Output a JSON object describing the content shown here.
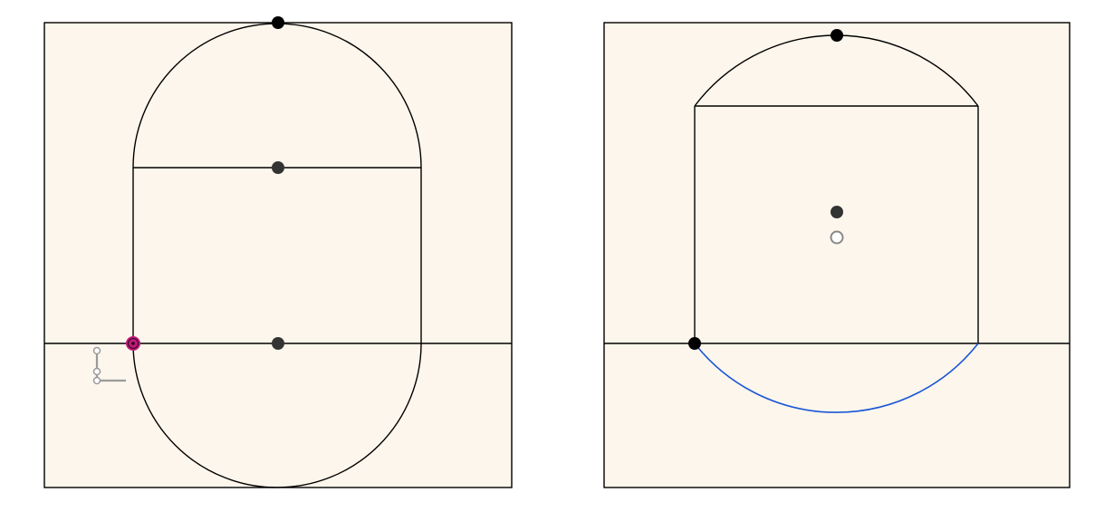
{
  "colors": {
    "sketch_background": "#fdf6ec",
    "line": "#000000",
    "active_arc": "#1a56d6",
    "selected_point": "#c2187a",
    "center_point": "#333333",
    "open_point": "#888888",
    "constraint_glyph": "#9a9a9a"
  },
  "panels": [
    {
      "name": "obround-sketch",
      "shape": "slot with two semicircular arc ends",
      "points": [
        "top-arc-point",
        "upper-arc-center",
        "lower-arc-center",
        "selected-endpoint"
      ],
      "constraint_icons": [
        "perpendicular-icon"
      ]
    },
    {
      "name": "rectangle-arc-sketch",
      "shape": "rectangle with top arc and active bottom arc",
      "points": [
        "top-arc-point",
        "arc-center",
        "open-cursor-point",
        "corner-point"
      ],
      "active_element": "bottom-arc"
    }
  ]
}
